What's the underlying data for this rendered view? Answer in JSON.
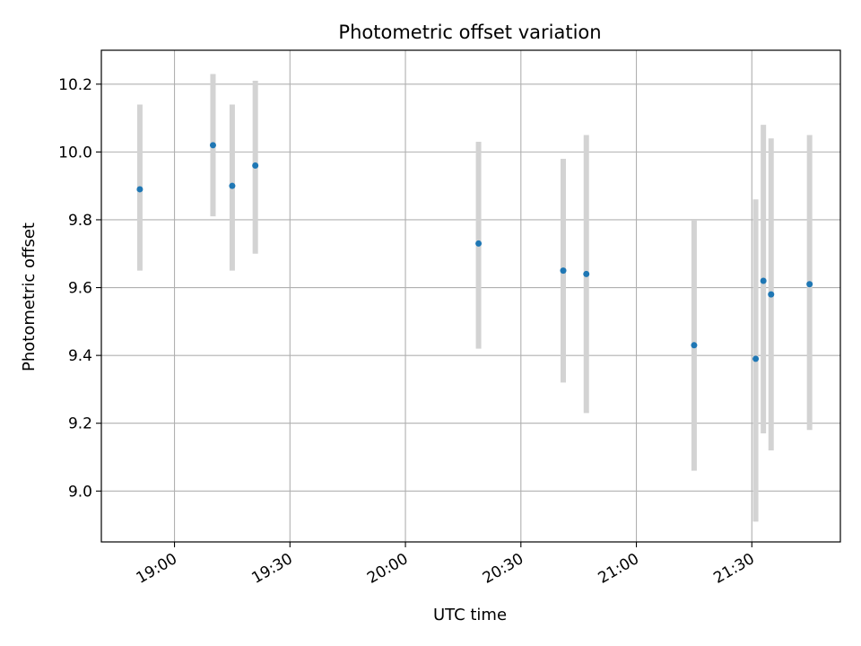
{
  "chart_data": {
    "type": "scatter",
    "title": "Photometric offset variation",
    "xlabel": "UTC time",
    "ylabel": "Photometric offset",
    "xlim": [
      "18:41",
      "21:53"
    ],
    "ylim": [
      8.85,
      10.3
    ],
    "grid": true,
    "x_ticks": [
      "19:00",
      "19:30",
      "20:00",
      "20:30",
      "21:00",
      "21:30"
    ],
    "y_ticks": [
      "9.0",
      "9.2",
      "9.4",
      "9.6",
      "9.8",
      "10.0",
      "10.2"
    ],
    "points": [
      {
        "x": "18:51",
        "y": 9.89,
        "err_low": 9.65,
        "err_high": 10.14
      },
      {
        "x": "19:10",
        "y": 10.02,
        "err_low": 9.81,
        "err_high": 10.23
      },
      {
        "x": "19:15",
        "y": 9.9,
        "err_low": 9.65,
        "err_high": 10.14
      },
      {
        "x": "19:21",
        "y": 9.96,
        "err_low": 9.7,
        "err_high": 10.21
      },
      {
        "x": "20:19",
        "y": 9.73,
        "err_low": 9.42,
        "err_high": 10.03
      },
      {
        "x": "20:41",
        "y": 9.65,
        "err_low": 9.32,
        "err_high": 9.98
      },
      {
        "x": "20:47",
        "y": 9.64,
        "err_low": 9.23,
        "err_high": 10.05
      },
      {
        "x": "21:15",
        "y": 9.43,
        "err_low": 9.06,
        "err_high": 9.8
      },
      {
        "x": "21:31",
        "y": 9.39,
        "err_low": 8.91,
        "err_high": 9.86
      },
      {
        "x": "21:33",
        "y": 9.62,
        "err_low": 9.17,
        "err_high": 10.08
      },
      {
        "x": "21:35",
        "y": 9.58,
        "err_low": 9.12,
        "err_high": 10.04
      },
      {
        "x": "21:45",
        "y": 9.61,
        "err_low": 9.18,
        "err_high": 10.05
      }
    ],
    "colors": {
      "point": "#1f77b4",
      "errorbar": "#d3d3d3",
      "grid": "#b0b0b0",
      "axes": "#000000"
    }
  }
}
